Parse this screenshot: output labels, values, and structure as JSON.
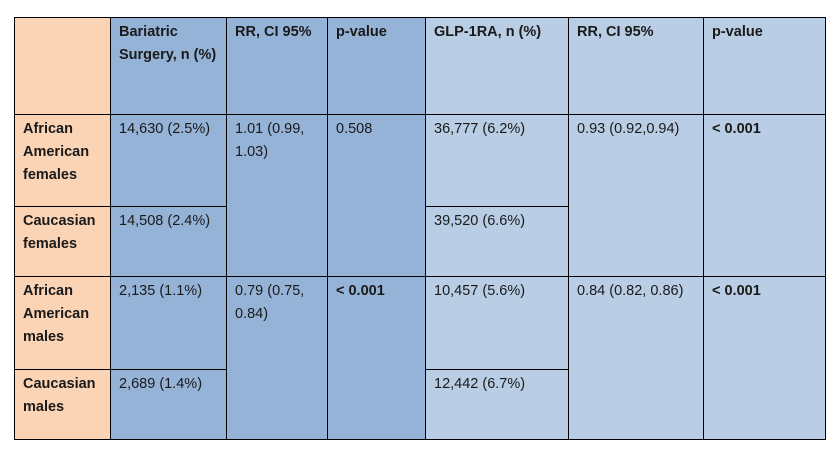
{
  "colors": {
    "peach": "#fbd3b5",
    "blue": "#95b3d7",
    "light_blue": "#b9cde5",
    "border": "#000000"
  },
  "table": {
    "headers": [
      "",
      "Bariatric Surgery, n (%)",
      "RR, CI 95%",
      "p-value",
      "GLP-1RA, n (%)",
      "RR, CI 95%",
      "p-value"
    ],
    "groups": [
      {
        "rows": [
          {
            "label": "African American females",
            "bariatric": "14,630 (2.5%)",
            "glp1ra": "36,777 (6.2%)"
          },
          {
            "label": "Caucasian females",
            "bariatric": "14,508 (2.4%)",
            "glp1ra": "39,520 (6.6%)"
          }
        ],
        "bariatric_rr": "1.01 (0.99, 1.03)",
        "bariatric_p": "0.508",
        "glp1ra_rr": "0.93 (0.92,0.94)",
        "glp1ra_p": "< 0.001"
      },
      {
        "rows": [
          {
            "label": "African American males",
            "bariatric": "2,135 (1.1%)",
            "glp1ra": "10,457 (5.6%)"
          },
          {
            "label": "Caucasian males",
            "bariatric": "2,689 (1.4%)",
            "glp1ra": "12,442 (6.7%)"
          }
        ],
        "bariatric_rr": "0.79 (0.75, 0.84)",
        "bariatric_p": "< 0.001",
        "glp1ra_rr": "0.84 (0.82, 0.86)",
        "glp1ra_p": "< 0.001"
      }
    ]
  }
}
